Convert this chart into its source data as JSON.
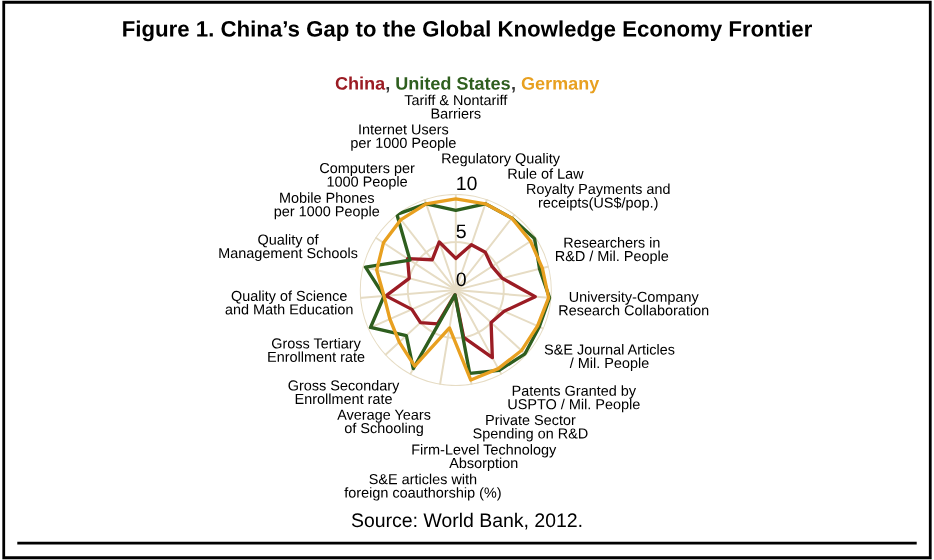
{
  "chart_data": {
    "type": "radar",
    "title": "Figure 1. China’s Gap to the Global Knowledge Economy Frontier",
    "categories": [
      "Tariff & Nontariff Barriers",
      "Regulatory Quality",
      "Rule of Law",
      "Royalty Payments and receipts(US$/pop.)",
      "Researchers in R&D / Mil. People",
      "University-Company Research Collaboration",
      "S&E Journal Articles / Mil. People",
      "Patents Granted by USPTO / Mil. People",
      "Private Sector Spending on R&D",
      "Firm-Level Technology Absorption",
      "S&E articles with foreign coauthorship (%)",
      "Average Years of Schooling",
      "Gross Secondary Enrollment rate",
      "Gross Tertiary Enrollment rate",
      "Quality of Science and Math Education",
      "Quality of Management Schools",
      "Mobile Phones per 1000 People",
      "Computers per 1000 People",
      "Internet Users per 1000 People"
    ],
    "series": [
      {
        "name": "China",
        "color": "#9b1c24",
        "values": [
          3.3,
          5,
          5,
          4.5,
          5,
          8.3,
          5.5,
          5,
          8,
          5,
          0.5,
          4,
          5,
          5,
          7.3,
          5,
          6,
          4,
          5.3
        ]
      },
      {
        "name": "United States",
        "color": "#2e5e1e",
        "values": [
          8.3,
          9.5,
          9.5,
          9.8,
          9,
          9.8,
          9.5,
          9.8,
          9.5,
          8.8,
          0.5,
          9.3,
          7,
          9.7,
          7.5,
          9.7,
          5.7,
          10,
          9.5
        ]
      },
      {
        "name": "Germany",
        "color": "#e8a020",
        "values": [
          9.5,
          9.5,
          9.5,
          9.3,
          9.3,
          9.7,
          9.3,
          9.3,
          9.3,
          9.5,
          4,
          9,
          8,
          7.5,
          7.5,
          8.5,
          9,
          9.3,
          9.5
        ]
      }
    ],
    "ylim": [
      0,
      10
    ],
    "yticks": [
      0,
      5,
      10
    ],
    "grid": true,
    "annotations": [
      ",",
      ",",
      "Source: World Bank, 2012."
    ]
  }
}
